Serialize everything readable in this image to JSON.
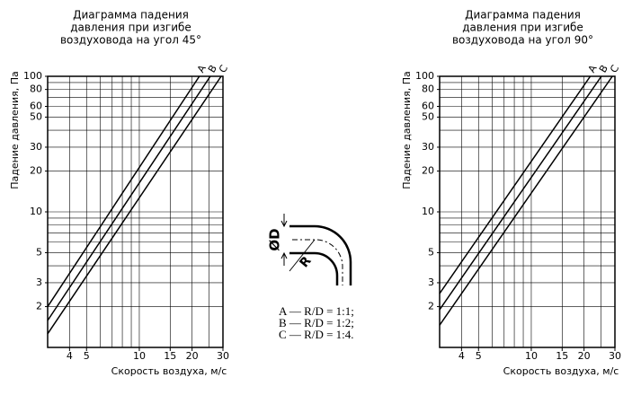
{
  "chart_data": [
    {
      "type": "line",
      "title": [
        "Диаграмма падения",
        "давления при изгибе",
        "воздуховода на угол 45°"
      ],
      "x_label": "Скорость воздуха, м/с",
      "y_label": "Падение давления, Па",
      "log_x": true,
      "log_y": true,
      "grid": true,
      "xlim": [
        3,
        30
      ],
      "ylim": [
        1,
        100
      ],
      "xticks": [
        4,
        5,
        10,
        15,
        20,
        30
      ],
      "yticks": [
        2,
        3,
        5,
        10,
        20,
        30,
        50,
        60,
        80,
        100
      ],
      "xgrid": [
        3,
        4,
        5,
        6,
        7,
        8,
        9,
        10,
        15,
        20,
        25,
        30
      ],
      "ygrid": [
        1,
        2,
        3,
        4,
        5,
        6,
        7,
        8,
        9,
        10,
        20,
        30,
        40,
        50,
        60,
        70,
        80,
        90,
        100
      ],
      "series": [
        {
          "name": "A",
          "color": "#000000",
          "x": [
            3,
            22
          ],
          "values": [
            2,
            100
          ]
        },
        {
          "name": "B",
          "color": "#000000",
          "x": [
            3,
            25.4
          ],
          "values": [
            1.58,
            100
          ]
        },
        {
          "name": "C",
          "color": "#000000",
          "x": [
            3,
            29.3
          ],
          "values": [
            1.26,
            100
          ]
        }
      ]
    },
    {
      "type": "line",
      "title": [
        "Диаграмма падения",
        "давления при изгибе",
        "воздуховода на угол 90°"
      ],
      "x_label": "Скорость воздуха, м/с",
      "y_label": "Падение давления, Па",
      "log_x": true,
      "log_y": true,
      "grid": true,
      "xlim": [
        3,
        30
      ],
      "ylim": [
        1,
        100
      ],
      "xticks": [
        4,
        5,
        10,
        15,
        20,
        30
      ],
      "yticks": [
        2,
        3,
        5,
        10,
        20,
        30,
        50,
        60,
        80,
        100
      ],
      "xgrid": [
        3,
        4,
        5,
        6,
        7,
        8,
        9,
        10,
        15,
        20,
        25,
        30
      ],
      "ygrid": [
        1,
        2,
        3,
        4,
        5,
        6,
        7,
        8,
        9,
        10,
        20,
        30,
        40,
        50,
        60,
        70,
        80,
        90,
        100
      ],
      "series": [
        {
          "name": "A",
          "color": "#000000",
          "x": [
            3,
            21.7
          ],
          "values": [
            2.5,
            100
          ]
        },
        {
          "name": "B",
          "color": "#000000",
          "x": [
            3,
            25.1
          ],
          "values": [
            1.9,
            100
          ]
        },
        {
          "name": "C",
          "color": "#000000",
          "x": [
            3,
            29
          ],
          "values": [
            1.46,
            100
          ]
        }
      ]
    }
  ],
  "diagram": {
    "labels": [
      "ØD",
      "R"
    ],
    "legend": [
      "A — R/D = 1:1;",
      "B — R/D = 1:2;",
      "C — R/D = 1:4."
    ]
  }
}
